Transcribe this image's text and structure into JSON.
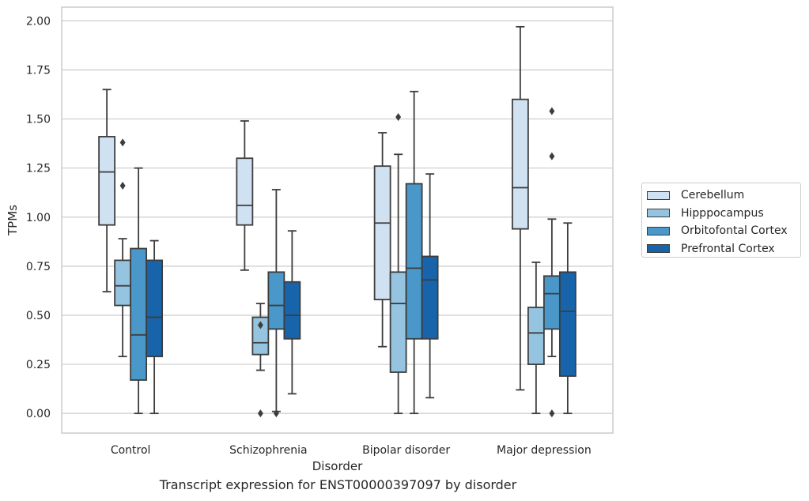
{
  "caption": "Transcript expression for ENST00000397097 by disorder",
  "legend": {
    "entries": [
      {
        "label": "Cerebellum",
        "color": "#d0e1f2"
      },
      {
        "label": "Hipppocampus",
        "color": "#94c4df"
      },
      {
        "label": "Orbitofontal Cortex",
        "color": "#4a98c9"
      },
      {
        "label": "Prefrontal Cortex",
        "color": "#1764ab"
      }
    ]
  },
  "chart_data": {
    "type": "boxplot",
    "xlabel": "Disorder",
    "ylabel": "TPMs",
    "categories": [
      "Control",
      "Schizophrenia",
      "Bipolar disorder",
      "Major depression"
    ],
    "ylim": [
      -0.1,
      2.07
    ],
    "yticks": [
      0.0,
      0.25,
      0.5,
      0.75,
      1.0,
      1.25,
      1.5,
      1.75,
      2.0
    ],
    "ytick_labels": [
      "0.00",
      "0.25",
      "0.50",
      "0.75",
      "1.00",
      "1.25",
      "1.50",
      "1.75",
      "2.00"
    ],
    "grid": true,
    "legend_position": "right, outside",
    "series": [
      {
        "name": "Cerebellum",
        "color": "#d0e1f2",
        "boxes": [
          {
            "whislo": 0.62,
            "q1": 0.96,
            "med": 1.23,
            "q3": 1.41,
            "whishi": 1.65,
            "fliers": []
          },
          {
            "whislo": 0.73,
            "q1": 0.96,
            "med": 1.06,
            "q3": 1.3,
            "whishi": 1.49,
            "fliers": []
          },
          {
            "whislo": 0.34,
            "q1": 0.58,
            "med": 0.97,
            "q3": 1.26,
            "whishi": 1.43,
            "fliers": []
          },
          {
            "whislo": 0.12,
            "q1": 0.94,
            "med": 1.15,
            "q3": 1.6,
            "whishi": 1.97,
            "fliers": []
          }
        ]
      },
      {
        "name": "Hipppocampus",
        "color": "#94c4df",
        "boxes": [
          {
            "whislo": 0.29,
            "q1": 0.55,
            "med": 0.65,
            "q3": 0.78,
            "whishi": 0.89,
            "fliers": [
              1.16,
              1.38
            ]
          },
          {
            "whislo": 0.22,
            "q1": 0.3,
            "med": 0.36,
            "q3": 0.49,
            "whishi": 0.56,
            "fliers": [
              0.45,
              0.0
            ]
          },
          {
            "whislo": 0.0,
            "q1": 0.21,
            "med": 0.56,
            "q3": 0.72,
            "whishi": 1.32,
            "fliers": [
              1.51
            ]
          },
          {
            "whislo": 0.0,
            "q1": 0.25,
            "med": 0.41,
            "q3": 0.54,
            "whishi": 0.77,
            "fliers": []
          }
        ]
      },
      {
        "name": "Orbitofontal Cortex",
        "color": "#4a98c9",
        "boxes": [
          {
            "whislo": 0.0,
            "q1": 0.17,
            "med": 0.4,
            "q3": 0.84,
            "whishi": 1.25,
            "fliers": []
          },
          {
            "whislo": 0.01,
            "q1": 0.43,
            "med": 0.55,
            "q3": 0.72,
            "whishi": 1.14,
            "fliers": [
              0.0
            ]
          },
          {
            "whislo": 0.0,
            "q1": 0.38,
            "med": 0.74,
            "q3": 1.17,
            "whishi": 1.64,
            "fliers": []
          },
          {
            "whislo": 0.29,
            "q1": 0.43,
            "med": 0.61,
            "q3": 0.7,
            "whishi": 0.99,
            "fliers": [
              1.31,
              1.54,
              0.0
            ]
          }
        ]
      },
      {
        "name": "Prefrontal Cortex",
        "color": "#1764ab",
        "boxes": [
          {
            "whislo": 0.0,
            "q1": 0.29,
            "med": 0.49,
            "q3": 0.78,
            "whishi": 0.88,
            "fliers": []
          },
          {
            "whislo": 0.1,
            "q1": 0.38,
            "med": 0.5,
            "q3": 0.67,
            "whishi": 0.93,
            "fliers": []
          },
          {
            "whislo": 0.08,
            "q1": 0.38,
            "med": 0.68,
            "q3": 0.8,
            "whishi": 1.22,
            "fliers": []
          },
          {
            "whislo": 0.0,
            "q1": 0.19,
            "med": 0.52,
            "q3": 0.72,
            "whishi": 0.97,
            "fliers": []
          }
        ]
      }
    ]
  }
}
